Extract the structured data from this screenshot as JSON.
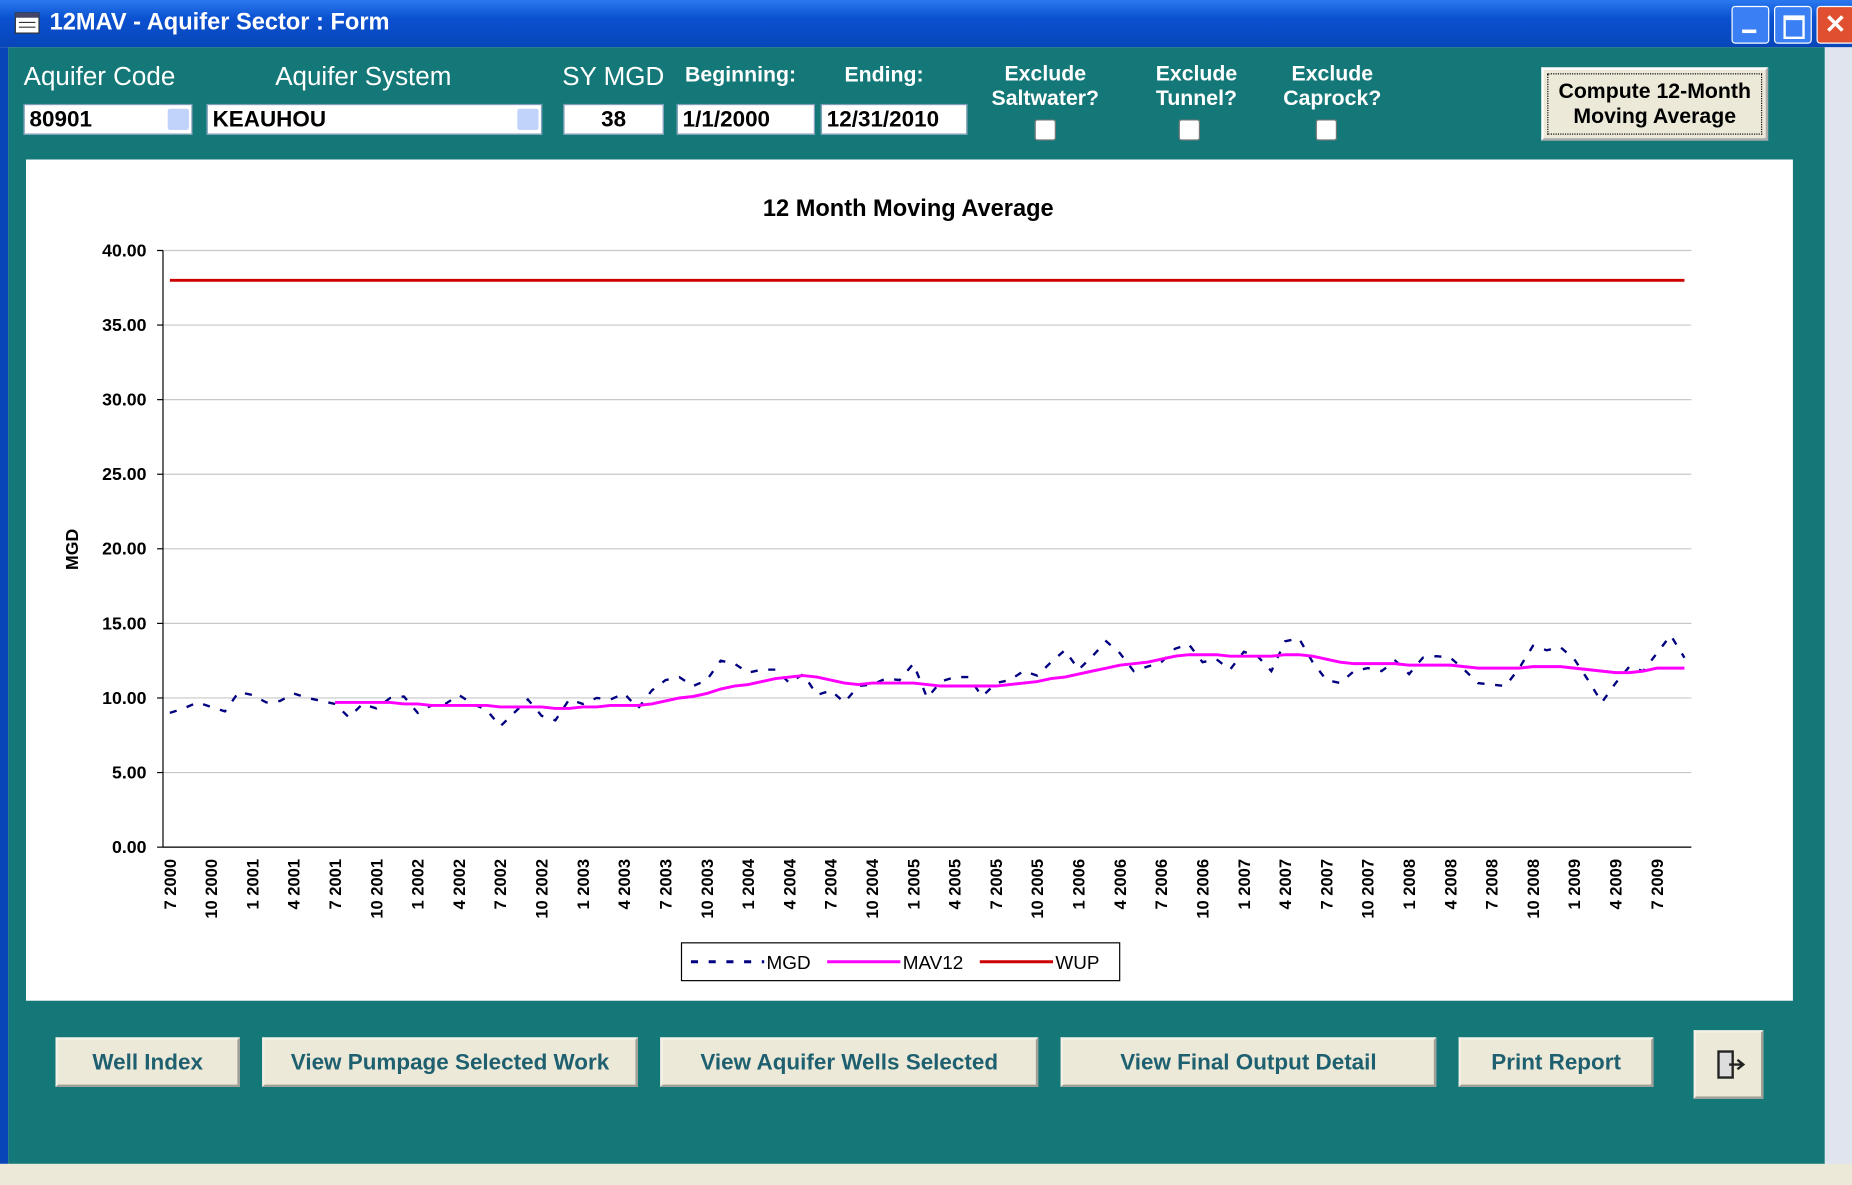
{
  "window": {
    "title": "12MAV - Aquifer Sector : Form"
  },
  "form": {
    "aquifer_code": {
      "label": "Aquifer Code",
      "value": "80901"
    },
    "aquifer_system": {
      "label": "Aquifer System",
      "value": "KEAUHOU"
    },
    "sy_mgd": {
      "label": "SY MGD",
      "value": "38"
    },
    "beginning": {
      "label": "Beginning:",
      "value": "1/1/2000"
    },
    "ending": {
      "label": "Ending:",
      "value": "12/31/2010"
    },
    "checkboxes": [
      {
        "label": "Exclude\nSaltwater?",
        "checked": false
      },
      {
        "label": "Exclude\nTunnel?",
        "checked": false
      },
      {
        "label": "Exclude\nCaprock?",
        "checked": false
      }
    ],
    "compute_button": "Compute 12-Month\nMoving Average"
  },
  "chart_data": {
    "type": "line",
    "title": "12 Month Moving Average",
    "y_label": "MGD",
    "categories": [
      "7 2000",
      null,
      null,
      "10 2000",
      null,
      null,
      "1 2001",
      null,
      null,
      "4 2001",
      null,
      null,
      "7 2001",
      null,
      null,
      "10 2001",
      null,
      null,
      "1 2002",
      null,
      null,
      "4 2002",
      null,
      null,
      "7 2002",
      null,
      null,
      "10 2002",
      null,
      null,
      "1 2003",
      null,
      null,
      "4 2003",
      null,
      null,
      "7 2003",
      null,
      null,
      "10 2003",
      null,
      null,
      "1 2004",
      null,
      null,
      "4 2004",
      null,
      null,
      "7 2004",
      null,
      null,
      "10 2004",
      null,
      null,
      "1 2005",
      null,
      null,
      "4 2005",
      null,
      null,
      "7 2005",
      null,
      null,
      "10 2005",
      null,
      null,
      "1 2006",
      null,
      null,
      "4 2006",
      null,
      null,
      "7 2006",
      null,
      null,
      "10 2006",
      null,
      null,
      "1 2007",
      null,
      null,
      "4 2007",
      null,
      null,
      "7 2007",
      null,
      null,
      "10 2007",
      null,
      null,
      "1 2008",
      null,
      null,
      "4 2008",
      null,
      null,
      "7 2008",
      null,
      null,
      "10 2008",
      null,
      null,
      "1 2009",
      null,
      null,
      "4 2009",
      null,
      null,
      "7 2009",
      null,
      null
    ],
    "series": [
      {
        "name": "MGD",
        "color": "#000080",
        "dashed": true,
        "values": [
          9.0,
          9.3,
          9.7,
          9.4,
          9.1,
          10.4,
          10.2,
          9.7,
          9.8,
          10.3,
          10.0,
          9.8,
          9.6,
          8.7,
          9.6,
          9.3,
          10.0,
          10.1,
          9.0,
          9.5,
          9.6,
          10.2,
          9.6,
          9.2,
          8.1,
          9.0,
          9.9,
          8.8,
          8.5,
          9.9,
          9.6,
          10.0,
          9.9,
          10.3,
          9.3,
          10.5,
          11.2,
          11.4,
          10.8,
          11.2,
          12.5,
          12.3,
          11.7,
          11.9,
          11.9,
          11.0,
          11.6,
          10.2,
          10.5,
          9.7,
          10.8,
          10.9,
          11.3,
          11.2,
          12.3,
          10.0,
          11.1,
          11.4,
          11.4,
          10.1,
          11.0,
          11.2,
          11.8,
          11.5,
          12.4,
          13.2,
          11.9,
          12.8,
          13.8,
          13.0,
          11.8,
          12.1,
          12.4,
          13.3,
          13.6,
          12.4,
          12.6,
          11.9,
          13.1,
          12.8,
          11.8,
          13.8,
          14.0,
          12.4,
          11.2,
          11.0,
          11.8,
          12.0,
          11.8,
          12.5,
          11.6,
          12.7,
          12.8,
          12.7,
          11.9,
          11.0,
          10.9,
          10.8,
          12.0,
          13.5,
          13.2,
          13.4,
          12.6,
          11.2,
          9.7,
          11.0,
          12.1,
          11.8,
          13.0,
          14.2,
          12.7
        ]
      },
      {
        "name": "MAV12",
        "color": "#ff00ff",
        "dashed": false,
        "values": [
          null,
          null,
          null,
          null,
          null,
          null,
          null,
          null,
          null,
          null,
          null,
          null,
          9.7,
          9.7,
          9.7,
          9.7,
          9.7,
          9.6,
          9.6,
          9.5,
          9.5,
          9.5,
          9.5,
          9.5,
          9.4,
          9.4,
          9.4,
          9.4,
          9.3,
          9.3,
          9.4,
          9.4,
          9.5,
          9.5,
          9.5,
          9.6,
          9.8,
          10.0,
          10.1,
          10.3,
          10.6,
          10.8,
          10.9,
          11.1,
          11.3,
          11.4,
          11.5,
          11.4,
          11.2,
          11.0,
          10.9,
          11.0,
          11.0,
          11.0,
          11.0,
          10.9,
          10.8,
          10.8,
          10.8,
          10.8,
          10.8,
          10.9,
          11.0,
          11.1,
          11.3,
          11.4,
          11.6,
          11.8,
          12.0,
          12.2,
          12.3,
          12.4,
          12.6,
          12.8,
          12.9,
          12.9,
          12.9,
          12.8,
          12.8,
          12.8,
          12.8,
          12.9,
          12.9,
          12.8,
          12.6,
          12.4,
          12.3,
          12.3,
          12.3,
          12.3,
          12.2,
          12.2,
          12.2,
          12.2,
          12.1,
          12.0,
          12.0,
          12.0,
          12.0,
          12.1,
          12.1,
          12.1,
          12.0,
          11.9,
          11.8,
          11.7,
          11.7,
          11.8,
          12.0,
          12.0,
          12.0
        ]
      },
      {
        "name": "WUP",
        "color": "#cc0000",
        "dashed": false,
        "values": [
          38,
          38,
          38,
          38,
          38,
          38,
          38,
          38,
          38,
          38,
          38,
          38,
          38,
          38,
          38,
          38,
          38,
          38,
          38,
          38,
          38,
          38,
          38,
          38,
          38,
          38,
          38,
          38,
          38,
          38,
          38,
          38,
          38,
          38,
          38,
          38,
          38,
          38,
          38,
          38,
          38,
          38,
          38,
          38,
          38,
          38,
          38,
          38,
          38,
          38,
          38,
          38,
          38,
          38,
          38,
          38,
          38,
          38,
          38,
          38,
          38,
          38,
          38,
          38,
          38,
          38,
          38,
          38,
          38,
          38,
          38,
          38,
          38,
          38,
          38,
          38,
          38,
          38,
          38,
          38,
          38,
          38,
          38,
          38,
          38,
          38,
          38,
          38,
          38,
          38,
          38,
          38,
          38,
          38,
          38,
          38,
          38,
          38,
          38,
          38,
          38,
          38,
          38,
          38,
          38,
          38,
          38,
          38,
          38,
          38,
          38
        ]
      }
    ],
    "ylim": [
      0,
      40
    ],
    "yticks": [
      {
        "value": 0,
        "label": "0.00"
      },
      {
        "value": 5,
        "label": "5.00"
      },
      {
        "value": 10,
        "label": "10.00"
      },
      {
        "value": 15,
        "label": "15.00"
      },
      {
        "value": 20,
        "label": "20.00"
      },
      {
        "value": 25,
        "label": "25.00"
      },
      {
        "value": 30,
        "label": "30.00"
      },
      {
        "value": 35,
        "label": "35.00"
      },
      {
        "value": 40,
        "label": "40.00"
      }
    ],
    "grid": true,
    "legend": "bottom"
  },
  "buttons": [
    "Well Index",
    "View Pumpage Selected Work",
    "View Aquifer Wells Selected",
    "View Final Output Detail",
    "Print Report"
  ]
}
